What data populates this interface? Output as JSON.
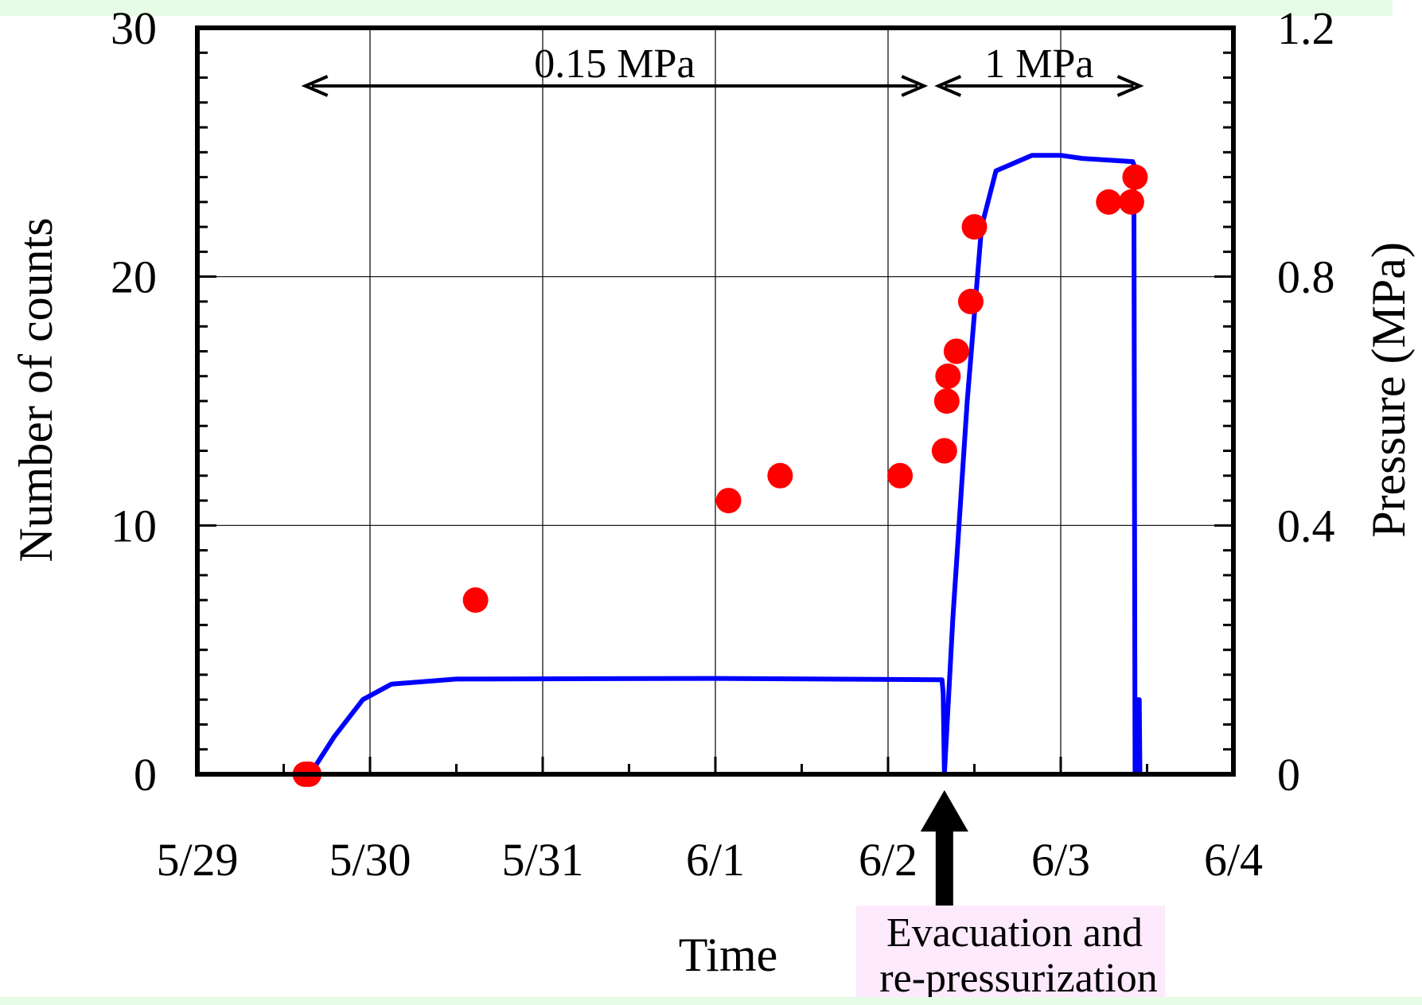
{
  "banner": {
    "cut_title": ""
  },
  "chart_data": {
    "type": "scatter",
    "title": "",
    "xlabel": "Time",
    "ylabel": "Number of counts",
    "ylabel_right": "Pressure (MPa)",
    "x_ticks": [
      "5/29",
      "5/30",
      "5/31",
      "6/1",
      "6/2",
      "6/3",
      "6/4"
    ],
    "xlim": [
      "5/29 00:00",
      "6/4 00:00"
    ],
    "ylim": [
      0,
      30
    ],
    "ylim_right": [
      0,
      1.2
    ],
    "y_ticks": [
      "0",
      "10",
      "20",
      "30"
    ],
    "y_ticks_right": [
      "0",
      "0.4",
      "0.8",
      "1.2"
    ],
    "grid": true,
    "colors": {
      "counts": "#ff0000",
      "pressure": "#0000ff",
      "annotation_box": "#fdeafd"
    },
    "series": [
      {
        "kind": "scatter",
        "axis": "left",
        "points": [
          [
            "5/29 15:00",
            0
          ],
          [
            "5/29 15:30",
            0
          ],
          [
            "5/30 14:40",
            7
          ],
          [
            "6/1 01:50",
            11
          ],
          [
            "6/1 09:00",
            12
          ],
          [
            "6/2 01:40",
            12
          ],
          [
            "6/2 07:50",
            13
          ],
          [
            "6/2 08:10",
            15
          ],
          [
            "6/2 08:20",
            16
          ],
          [
            "6/2 09:30",
            17
          ],
          [
            "6/2 11:30",
            19
          ],
          [
            "6/2 12:00",
            22
          ],
          [
            "6/3 06:40",
            23
          ],
          [
            "6/3 09:50",
            23
          ],
          [
            "6/3 10:20",
            24
          ]
        ]
      },
      {
        "kind": "line",
        "axis": "right",
        "points": [
          [
            "5/29 00:00",
            0
          ],
          [
            "5/29 15:40",
            0
          ],
          [
            "5/29 19:00",
            0.06
          ],
          [
            "5/29 23:00",
            0.12
          ],
          [
            "5/30 03:00",
            0.145
          ],
          [
            "5/30 12:00",
            0.153
          ],
          [
            "6/1 00:00",
            0.154
          ],
          [
            "6/2 07:00",
            0.152
          ],
          [
            "6/2 07:30",
            0.152
          ],
          [
            "6/2 07:40",
            0.13
          ],
          [
            "6/2 07:50",
            0
          ],
          [
            "6/2 09:00",
            0.25
          ],
          [
            "6/2 11:00",
            0.6
          ],
          [
            "6/2 13:00",
            0.88
          ],
          [
            "6/2 15:00",
            0.97
          ],
          [
            "6/2 20:00",
            0.995
          ],
          [
            "6/3 00:00",
            0.995
          ],
          [
            "6/3 03:00",
            0.99
          ],
          [
            "6/3 10:00",
            0.985
          ],
          [
            "6/3 10:10",
            0.98
          ],
          [
            "6/3 10:20",
            0
          ],
          [
            "6/3 10:40",
            0
          ],
          [
            "6/3 10:45",
            0.12
          ],
          [
            "6/3 10:55",
            0.12
          ],
          [
            "6/3 11:00",
            0
          ],
          [
            "6/3 11:10",
            0
          ]
        ]
      }
    ],
    "annotations": [
      {
        "text": "0.15 MPa",
        "from": "5/29 15:00",
        "to": "6/2 05:00"
      },
      {
        "text": "1 MPa",
        "from": "6/2 07:00",
        "to": "6/3 11:00"
      }
    ],
    "event": {
      "time": "6/2 07:50",
      "label_line1": "Evacuation and",
      "label_line2": "re-pressurization"
    }
  }
}
